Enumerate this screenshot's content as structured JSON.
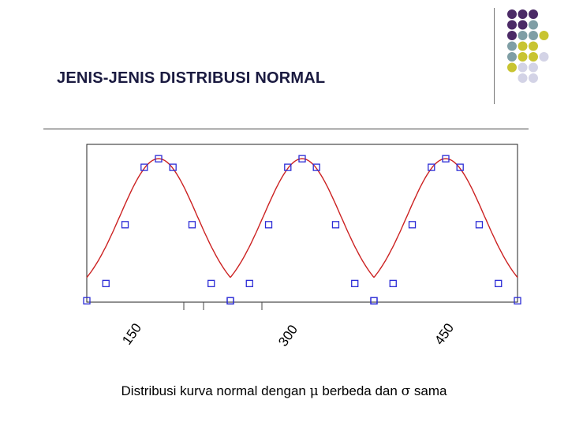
{
  "slide": {
    "title": "JENIS-JENIS DISTRIBUSI NORMAL",
    "caption": {
      "part1": "Distribusi kurva normal dengan ",
      "mu": "μ",
      "part2": " berbeda dan ",
      "sigma": "σ",
      "part3": " sama"
    }
  },
  "decoration": {
    "colors": {
      "purple": "#4b2a66",
      "teal": "#7f9ea5",
      "olive": "#c8c431",
      "lavender": "#d3d3e6"
    },
    "grid_rows": [
      [
        "purple",
        "purple",
        "purple",
        "none"
      ],
      [
        "purple",
        "purple",
        "teal",
        "none"
      ],
      [
        "purple",
        "teal",
        "teal",
        "olive"
      ],
      [
        "teal",
        "olive",
        "olive",
        "none"
      ],
      [
        "teal",
        "olive",
        "olive",
        "lavender"
      ],
      [
        "olive",
        "lavender",
        "lavender",
        "none"
      ],
      [
        "none",
        "lavender",
        "lavender",
        "none"
      ]
    ]
  },
  "chart_data": {
    "type": "line",
    "title": "",
    "xlabel": "",
    "ylabel": "",
    "x_tick_labels": [
      "150",
      "300",
      "450"
    ],
    "series": [
      {
        "mean": 150,
        "x": [
          75,
          95,
          115,
          135,
          150,
          165,
          185,
          205,
          225
        ],
        "y": [
          0.01,
          0.13,
          0.54,
          0.94,
          1.0,
          0.94,
          0.54,
          0.13,
          0.01
        ]
      },
      {
        "mean": 300,
        "x": [
          225,
          245,
          265,
          285,
          300,
          315,
          335,
          355,
          375
        ],
        "y": [
          0.01,
          0.13,
          0.54,
          0.94,
          1.0,
          0.94,
          0.54,
          0.13,
          0.01
        ]
      },
      {
        "mean": 450,
        "x": [
          375,
          395,
          415,
          435,
          450,
          465,
          485,
          505,
          525
        ],
        "y": [
          0.01,
          0.13,
          0.54,
          0.94,
          1.0,
          0.94,
          0.54,
          0.13,
          0.01
        ]
      }
    ],
    "xlim": [
      75,
      525
    ],
    "ylim": [
      0,
      1.1
    ],
    "curve_color": "#cc2222",
    "marker_color": "#2b2bd6",
    "grid": false
  }
}
